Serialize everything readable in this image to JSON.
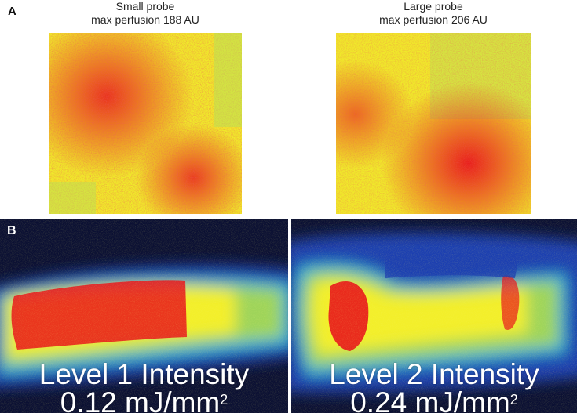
{
  "panel_a": {
    "letter": "A",
    "left": {
      "title": "Small probe",
      "subtitle": "max perfusion 188 AU"
    },
    "right": {
      "title": "Large probe",
      "subtitle": "max perfusion 206 AU"
    }
  },
  "panel_b": {
    "letter": "B",
    "left": {
      "line1": "Level 1 Intensity",
      "line2": "0.12 mJ/mm",
      "sup": "2"
    },
    "right": {
      "line1": "Level 2 Intensity",
      "line2": "0.24 mJ/mm",
      "sup": "2"
    }
  },
  "colors": {
    "red": "#e8141b",
    "yellow": "#f3ef2b",
    "green": "#9ed45a",
    "blue": "#1d3fb0",
    "navy": "#0b1033"
  }
}
